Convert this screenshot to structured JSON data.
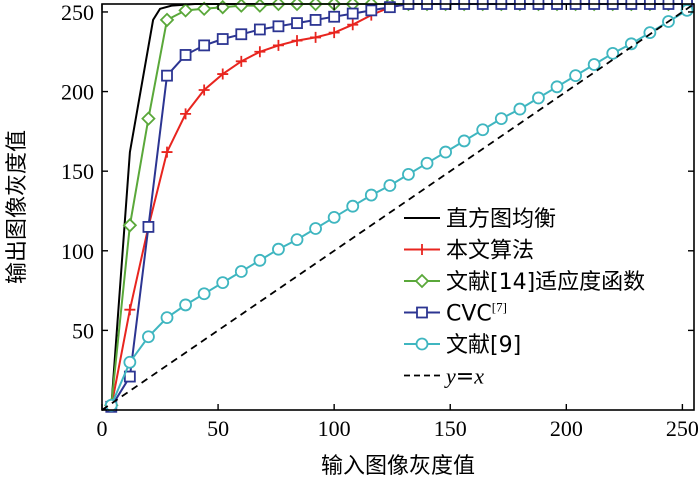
{
  "chart_data": {
    "type": "line",
    "xlabel": "输入图像灰度值",
    "ylabel": "输出图像灰度值",
    "xlim": [
      0,
      255
    ],
    "ylim": [
      0,
      255
    ],
    "xticks": [
      0,
      50,
      100,
      150,
      200,
      250
    ],
    "yticks": [
      50,
      100,
      150,
      200,
      250
    ],
    "legend_position": "bottom-right",
    "series": [
      {
        "name": "直方图均衡",
        "color": "#000000",
        "dash": "solid",
        "marker": "none",
        "x": [
          0,
          4,
          12,
          22,
          25,
          30,
          40,
          60,
          100,
          150,
          200,
          255
        ],
        "y": [
          0,
          2,
          162,
          245,
          252,
          254,
          255,
          255,
          255,
          255,
          255,
          255
        ]
      },
      {
        "name": "本文算法",
        "color": "#e8251f",
        "dash": "solid",
        "marker": "plus",
        "x": [
          4,
          12,
          20,
          28,
          36,
          44,
          52,
          60,
          68,
          76,
          84,
          92,
          100,
          108,
          116,
          124,
          132,
          140,
          148,
          156,
          164,
          172,
          180,
          188,
          196,
          204,
          212,
          220,
          228,
          236,
          244,
          252,
          255
        ],
        "y": [
          2,
          63,
          115,
          162,
          186,
          201,
          211,
          219,
          225,
          229,
          232,
          234,
          237,
          242,
          248,
          253,
          255,
          255,
          255,
          255,
          255,
          255,
          255,
          255,
          255,
          255,
          255,
          255,
          255,
          255,
          255,
          255,
          255
        ],
        "marker_indices": [
          0,
          1,
          2,
          3,
          4,
          5,
          6,
          7,
          8,
          9,
          10,
          11,
          12,
          13,
          14,
          15,
          16,
          17,
          18,
          19,
          20,
          21,
          22,
          23,
          24,
          25,
          26,
          27,
          28,
          29,
          30,
          31
        ]
      },
      {
        "name": "文献[14]适应度函数",
        "color": "#5aa83a",
        "dash": "solid",
        "marker": "diamond",
        "x": [
          4,
          12,
          20,
          28,
          36,
          44,
          52,
          60,
          68,
          76,
          84,
          92,
          100,
          108,
          116,
          124,
          132,
          140,
          148,
          156,
          164,
          172,
          180,
          188,
          196,
          204,
          212,
          220,
          228,
          236,
          244,
          252,
          255
        ],
        "y": [
          3,
          116,
          183,
          245,
          251,
          252,
          253,
          254,
          254,
          255,
          255,
          255,
          255,
          255,
          255,
          255,
          255,
          255,
          255,
          255,
          255,
          255,
          255,
          255,
          255,
          255,
          255,
          255,
          255,
          255,
          255,
          255,
          255
        ],
        "marker_indices": [
          0,
          1,
          2,
          3,
          4,
          5,
          6,
          7,
          8,
          9,
          10,
          11,
          12,
          13,
          14,
          15,
          16,
          17,
          18,
          19,
          20,
          21,
          22,
          23,
          24,
          25,
          26,
          27,
          28,
          29,
          30,
          31
        ]
      },
      {
        "name": "CVC",
        "name_sup": "[7]",
        "color": "#2c3592",
        "dash": "solid",
        "marker": "square",
        "x": [
          4,
          12,
          20,
          28,
          36,
          44,
          52,
          60,
          68,
          76,
          84,
          92,
          100,
          108,
          116,
          124,
          132,
          140,
          148,
          156,
          164,
          172,
          180,
          188,
          196,
          204,
          212,
          220,
          228,
          236,
          244,
          252,
          255
        ],
        "y": [
          2,
          21,
          115,
          210,
          223,
          229,
          233,
          236,
          239,
          241,
          243,
          245,
          247,
          249,
          251,
          253,
          255,
          255,
          255,
          255,
          255,
          255,
          255,
          255,
          255,
          255,
          255,
          255,
          255,
          255,
          255,
          255,
          255
        ],
        "marker_indices": [
          0,
          1,
          2,
          3,
          4,
          5,
          6,
          7,
          8,
          9,
          10,
          11,
          12,
          13,
          14,
          15,
          16,
          17,
          18,
          19,
          20,
          21,
          22,
          23,
          24,
          25,
          26,
          27,
          28,
          29,
          30,
          31
        ]
      },
      {
        "name": "文献[9]",
        "color": "#3fb6c0",
        "dash": "solid",
        "marker": "circle",
        "x": [
          4,
          12,
          20,
          28,
          36,
          44,
          52,
          60,
          68,
          76,
          84,
          92,
          100,
          108,
          116,
          124,
          132,
          140,
          148,
          156,
          164,
          172,
          180,
          188,
          196,
          204,
          212,
          220,
          228,
          236,
          244,
          252
        ],
        "y": [
          3,
          30,
          46,
          58,
          66,
          73,
          80,
          87,
          94,
          101,
          107,
          114,
          121,
          128,
          135,
          141,
          148,
          155,
          162,
          169,
          176,
          183,
          189,
          196,
          203,
          210,
          217,
          224,
          230,
          237,
          244,
          251
        ],
        "marker_indices": [
          0,
          1,
          2,
          3,
          4,
          5,
          6,
          7,
          8,
          9,
          10,
          11,
          12,
          13,
          14,
          15,
          16,
          17,
          18,
          19,
          20,
          21,
          22,
          23,
          24,
          25,
          26,
          27,
          28,
          29,
          30,
          31
        ]
      },
      {
        "name_parts": [
          "y",
          "=",
          "x"
        ],
        "color": "#000000",
        "dash": "dashed",
        "marker": "none",
        "x": [
          0,
          255
        ],
        "y": [
          0,
          255
        ]
      }
    ]
  }
}
